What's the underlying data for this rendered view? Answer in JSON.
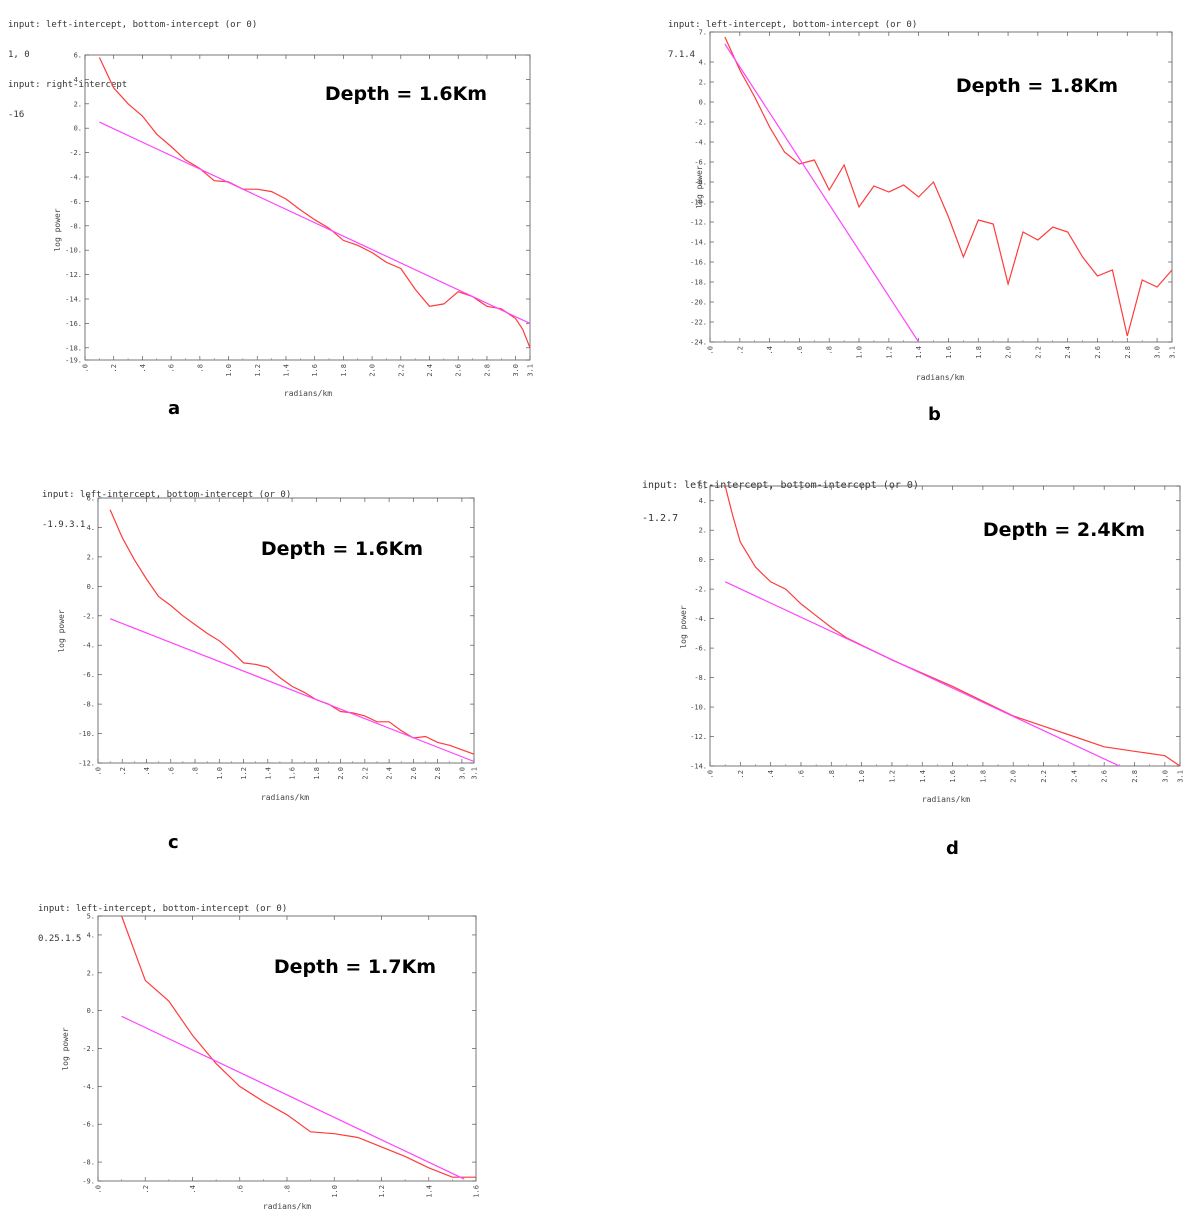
{
  "panels": [
    {
      "id": "a",
      "label": "a",
      "prompt_lines": [
        "input: left-intercept, bottom-intercept (or 0)",
        "1, 0",
        "input: right-intercept",
        "-16"
      ],
      "chart_data": {
        "type": "line",
        "annotation": "Depth = 1.6Km",
        "xlabel": "radians/km",
        "ylabel": "log power",
        "xlim": [
          0,
          3.1
        ],
        "ylim": [
          -19,
          6
        ],
        "xticks": [
          0,
          0.2,
          0.4,
          0.6,
          0.8,
          1.0,
          1.2,
          1.4,
          1.6,
          1.8,
          2.0,
          2.2,
          2.4,
          2.6,
          2.8,
          3.0,
          3.1
        ],
        "xtick_labels": [
          ".0",
          ".2",
          ".4",
          ".6",
          ".8",
          "1.0",
          "1.2",
          "1.4",
          "1.6",
          "1.8",
          "2.0",
          "2.2",
          "2.4",
          "2.6",
          "2.8",
          "3.0",
          "3.1"
        ],
        "yticks": [
          6,
          4,
          2,
          0,
          -2,
          -4,
          -6,
          -8,
          -10,
          -12,
          -14,
          -16,
          -18,
          -19
        ],
        "ytick_labels": [
          "6.",
          "4.",
          "2.",
          "0.",
          "-2.",
          "-4.",
          "-6.",
          "-8.",
          "-10.",
          "-12.",
          "-14.",
          "-16.",
          "-18.",
          "-19."
        ],
        "grid": false,
        "series": [
          {
            "kind": "spectrum",
            "color": "#ff3b3b",
            "x": [
              0.1,
              0.2,
              0.3,
              0.4,
              0.5,
              0.6,
              0.7,
              0.8,
              0.9,
              1.0,
              1.1,
              1.2,
              1.3,
              1.4,
              1.5,
              1.6,
              1.7,
              1.8,
              1.9,
              2.0,
              2.1,
              2.2,
              2.3,
              2.4,
              2.5,
              2.6,
              2.7,
              2.8,
              2.9,
              3.0,
              3.05,
              3.1
            ],
            "y": [
              5.8,
              3.3,
              2.0,
              1.0,
              -0.5,
              -1.5,
              -2.6,
              -3.3,
              -4.3,
              -4.4,
              -5.0,
              -5.0,
              -5.2,
              -5.8,
              -6.7,
              -7.5,
              -8.2,
              -9.2,
              -9.6,
              -10.2,
              -11.0,
              -11.5,
              -13.2,
              -14.6,
              -14.4,
              -13.4,
              -13.8,
              -14.6,
              -14.8,
              -15.6,
              -16.5,
              -18.0
            ]
          },
          {
            "kind": "fit",
            "color": "#ff44ff",
            "x": [
              0.1,
              3.1
            ],
            "y": [
              0.5,
              -16.0
            ]
          }
        ]
      }
    },
    {
      "id": "b",
      "label": "b",
      "prompt_lines": [
        "input: left-intercept, bottom-intercept (or 0)",
        "7.1.4"
      ],
      "chart_data": {
        "type": "line",
        "annotation": "Depth = 1.8Km",
        "xlabel": "radians/km",
        "ylabel": "log power",
        "xlim": [
          0,
          3.1
        ],
        "ylim": [
          -24,
          7
        ],
        "xticks": [
          0,
          0.2,
          0.4,
          0.6,
          0.8,
          1.0,
          1.2,
          1.4,
          1.6,
          1.8,
          2.0,
          2.2,
          2.4,
          2.6,
          2.8,
          3.0,
          3.1
        ],
        "xtick_labels": [
          ".0",
          ".2",
          ".4",
          ".6",
          ".8",
          "1.0",
          "1.2",
          "1.4",
          "1.6",
          "1.8",
          "2.0",
          "2.2",
          "2.4",
          "2.6",
          "2.8",
          "3.0",
          "3.1"
        ],
        "yticks": [
          7,
          4,
          2,
          0,
          -2,
          -4,
          -6,
          -8,
          -10,
          -12,
          -14,
          -16,
          -18,
          -20,
          -22,
          -24
        ],
        "ytick_labels": [
          "7.",
          "4.",
          "2.",
          "0.",
          "-2.",
          "-4.",
          "-6.",
          "-8.",
          "-10.",
          "-12.",
          "-14.",
          "-16.",
          "-18.",
          "-20.",
          "-22.",
          "-24."
        ],
        "grid": false,
        "series": [
          {
            "kind": "spectrum",
            "color": "#ff3b3b",
            "x": [
              0.1,
              0.2,
              0.3,
              0.4,
              0.5,
              0.6,
              0.7,
              0.8,
              0.9,
              1.0,
              1.1,
              1.2,
              1.3,
              1.4,
              1.5,
              1.6,
              1.7,
              1.8,
              1.9,
              2.0,
              2.1,
              2.2,
              2.3,
              2.4,
              2.5,
              2.6,
              2.7,
              2.8,
              2.9,
              3.0,
              3.1
            ],
            "y": [
              6.5,
              3.2,
              0.5,
              -2.5,
              -5.0,
              -6.2,
              -5.8,
              -8.8,
              -6.3,
              -10.5,
              -8.4,
              -9.0,
              -8.3,
              -9.5,
              -8.0,
              -11.5,
              -15.5,
              -11.8,
              -12.2,
              -18.2,
              -13.0,
              -13.8,
              -12.5,
              -13.0,
              -15.5,
              -17.4,
              -16.8,
              -23.4,
              -17.8,
              -18.5,
              -16.8
            ]
          },
          {
            "kind": "fit",
            "color": "#ff44ff",
            "x": [
              0.1,
              1.4
            ],
            "y": [
              5.8,
              -24.0
            ]
          }
        ]
      }
    },
    {
      "id": "c",
      "label": "c",
      "prompt_lines": [
        "input: left-intercept, bottom-intercept (or 0)",
        "-1.9.3.1"
      ],
      "chart_data": {
        "type": "line",
        "annotation": "Depth = 1.6Km",
        "xlabel": "radians/km",
        "ylabel": "log power",
        "xlim": [
          0,
          3.1
        ],
        "ylim": [
          -12,
          6
        ],
        "xticks": [
          0,
          0.2,
          0.4,
          0.6,
          0.8,
          1.0,
          1.2,
          1.4,
          1.6,
          1.8,
          2.0,
          2.2,
          2.4,
          2.6,
          2.8,
          3.0,
          3.1
        ],
        "xtick_labels": [
          ".0",
          ".2",
          ".4",
          ".6",
          ".8",
          "1.0",
          "1.2",
          "1.4",
          "1.6",
          "1.8",
          "2.0",
          "2.2",
          "2.4",
          "2.6",
          "2.8",
          "3.0",
          "3.1"
        ],
        "yticks": [
          6,
          4,
          2,
          0,
          -2,
          -4,
          -6,
          -8,
          -10,
          -12
        ],
        "ytick_labels": [
          "6.",
          "4.",
          "2.",
          "0.",
          "-2.",
          "-4.",
          "-6.",
          "-8.",
          "-10.",
          "-12."
        ],
        "grid": false,
        "series": [
          {
            "kind": "spectrum",
            "color": "#ff3b3b",
            "x": [
              0.1,
              0.2,
              0.3,
              0.4,
              0.5,
              0.6,
              0.7,
              0.8,
              0.9,
              1.0,
              1.1,
              1.2,
              1.3,
              1.4,
              1.5,
              1.6,
              1.7,
              1.8,
              1.9,
              2.0,
              2.1,
              2.2,
              2.3,
              2.4,
              2.5,
              2.6,
              2.7,
              2.8,
              2.9,
              3.0,
              3.1
            ],
            "y": [
              5.2,
              3.3,
              1.8,
              0.5,
              -0.7,
              -1.3,
              -2.0,
              -2.6,
              -3.2,
              -3.7,
              -4.4,
              -5.2,
              -5.3,
              -5.5,
              -6.2,
              -6.8,
              -7.2,
              -7.7,
              -8.0,
              -8.5,
              -8.6,
              -8.8,
              -9.2,
              -9.2,
              -9.8,
              -10.3,
              -10.2,
              -10.6,
              -10.8,
              -11.1,
              -11.4
            ]
          },
          {
            "kind": "fit",
            "color": "#ff44ff",
            "x": [
              0.1,
              3.1
            ],
            "y": [
              -2.2,
              -11.9
            ]
          }
        ]
      }
    },
    {
      "id": "d",
      "label": "d",
      "prompt_lines": [
        "input: left-intercept, bottom-intercept (or 0)",
        "-1.2.7"
      ],
      "chart_data": {
        "type": "line",
        "annotation": "Depth = 2.4Km",
        "xlabel": "radians/km",
        "ylabel": "log power",
        "xlim": [
          0,
          3.1
        ],
        "ylim": [
          -14,
          5
        ],
        "xticks": [
          0,
          0.2,
          0.4,
          0.6,
          0.8,
          1.0,
          1.2,
          1.4,
          1.6,
          1.8,
          2.0,
          2.2,
          2.4,
          2.6,
          2.8,
          3.0,
          3.1
        ],
        "xtick_labels": [
          ".0",
          ".2",
          ".4",
          ".6",
          ".8",
          "1.0",
          "1.2",
          "1.4",
          "1.6",
          "1.8",
          "2.0",
          "2.2",
          "2.4",
          "2.6",
          "2.8",
          "3.0",
          "3.1"
        ],
        "yticks": [
          5,
          4,
          2,
          0,
          -2,
          -4,
          -6,
          -8,
          -10,
          -12,
          -14
        ],
        "ytick_labels": [
          "5.",
          "4.",
          "2.",
          "0.",
          "-2.",
          "-4.",
          "-6.",
          "-8.",
          "-10.",
          "-12.",
          "-14."
        ],
        "grid": false,
        "series": [
          {
            "kind": "spectrum",
            "color": "#ff3b3b",
            "x": [
              0.1,
              0.15,
              0.2,
              0.3,
              0.4,
              0.5,
              0.6,
              0.7,
              0.8,
              0.9,
              1.0,
              1.2,
              1.4,
              1.6,
              1.8,
              2.0,
              2.2,
              2.4,
              2.6,
              2.8,
              3.0,
              3.1
            ],
            "y": [
              5.0,
              3.0,
              1.2,
              -0.5,
              -1.5,
              -2.0,
              -3.0,
              -3.8,
              -4.6,
              -5.3,
              -5.8,
              -6.8,
              -7.7,
              -8.6,
              -9.6,
              -10.6,
              -11.3,
              -12.0,
              -12.7,
              -13.0,
              -13.3,
              -14.0
            ]
          },
          {
            "kind": "fit",
            "color": "#ff44ff",
            "x": [
              0.1,
              2.7
            ],
            "y": [
              -1.5,
              -14.0
            ]
          }
        ]
      }
    },
    {
      "id": "e",
      "label": "",
      "prompt_lines": [
        "input: left-intercept, bottom-intercept (or 0)",
        "0.25.1.5"
      ],
      "chart_data": {
        "type": "line",
        "annotation": "Depth = 1.7Km",
        "xlabel": "radians/km",
        "ylabel": "log power",
        "xlim": [
          0,
          1.6
        ],
        "ylim": [
          -9,
          5
        ],
        "xticks": [
          0,
          0.2,
          0.4,
          0.6,
          0.8,
          1.0,
          1.2,
          1.4,
          1.6
        ],
        "xtick_labels": [
          ".0",
          ".2",
          ".4",
          ".6",
          ".8",
          "1.0",
          "1.2",
          "1.4",
          "1.6"
        ],
        "yticks": [
          5,
          4,
          2,
          0,
          -2,
          -4,
          -6,
          -8,
          -9
        ],
        "ytick_labels": [
          "5.",
          "4.",
          "2.",
          "0.",
          "-2.",
          "-4.",
          "-6.",
          "-8.",
          "-9."
        ],
        "grid": false,
        "series": [
          {
            "kind": "spectrum",
            "color": "#ff3b3b",
            "x": [
              0.1,
              0.15,
              0.2,
              0.3,
              0.4,
              0.5,
              0.6,
              0.7,
              0.8,
              0.9,
              1.0,
              1.1,
              1.2,
              1.3,
              1.4,
              1.5,
              1.6
            ],
            "y": [
              5.0,
              3.3,
              1.6,
              0.5,
              -1.3,
              -2.8,
              -4.0,
              -4.8,
              -5.5,
              -6.4,
              -6.5,
              -6.7,
              -7.2,
              -7.7,
              -8.3,
              -8.8,
              -8.8
            ]
          },
          {
            "kind": "fit",
            "color": "#ff44ff",
            "x": [
              0.1,
              1.55
            ],
            "y": [
              -0.3,
              -8.9
            ]
          }
        ]
      }
    }
  ]
}
